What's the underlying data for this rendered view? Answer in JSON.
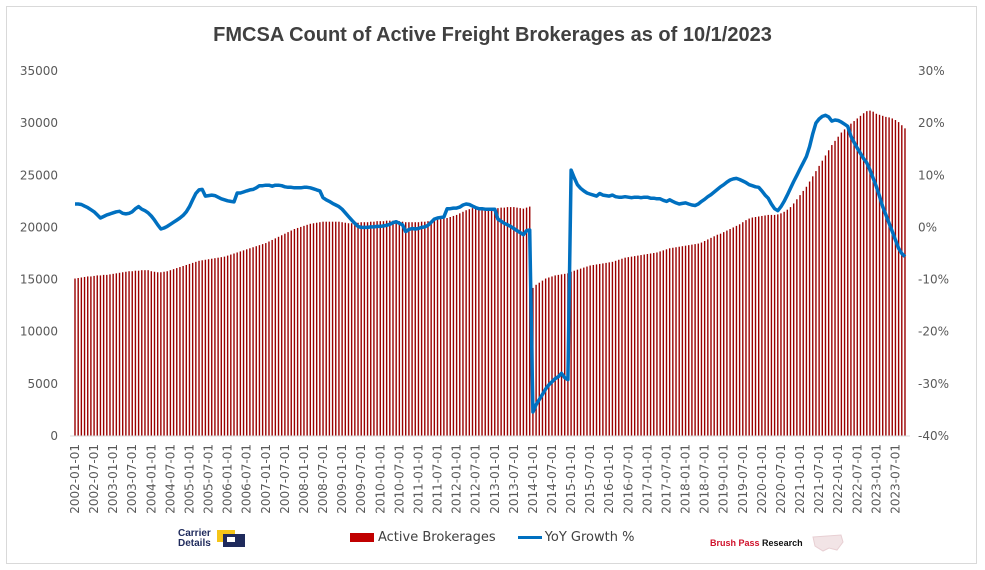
{
  "chart_data": {
    "type": "bar+line",
    "title": "FMCSA Count of Active Freight Brokerages as of 10/1/2023",
    "x_frequency": "monthly",
    "x_tick_labels": [
      "2002-01-01",
      "2002-07-01",
      "2003-01-01",
      "2003-07-01",
      "2004-01-01",
      "2004-07-01",
      "2005-01-01",
      "2005-07-01",
      "2006-01-01",
      "2006-07-01",
      "2007-01-01",
      "2007-07-01",
      "2008-01-01",
      "2008-07-01",
      "2009-01-01",
      "2009-07-01",
      "2010-01-01",
      "2010-07-01",
      "2011-01-01",
      "2011-07-01",
      "2012-01-01",
      "2012-07-01",
      "2013-01-01",
      "2013-07-01",
      "2014-01-01",
      "2014-07-01",
      "2015-01-01",
      "2015-07-01",
      "2016-01-01",
      "2016-07-01",
      "2017-01-01",
      "2017-07-01",
      "2018-01-01",
      "2018-07-01",
      "2019-01-01",
      "2019-07-01",
      "2020-01-01",
      "2020-07-01",
      "2021-01-01",
      "2021-07-01",
      "2022-01-01",
      "2022-07-01",
      "2023-01-01",
      "2023-07-01"
    ],
    "y_left": {
      "ylim": [
        0,
        35000
      ],
      "ticks": [
        "0",
        "5000",
        "10000",
        "15000",
        "20000",
        "25000",
        "30000",
        "35000"
      ]
    },
    "y_right": {
      "ylim": [
        -40,
        30
      ],
      "ticks": [
        "-40%",
        "-30%",
        "-20%",
        "-10%",
        "0%",
        "10%",
        "20%",
        "30%"
      ]
    },
    "grid": false,
    "legend_position": "bottom",
    "series": [
      {
        "name": "Active Brokerages",
        "type": "bar",
        "axis": "left",
        "color": "#9b0000",
        "values": [
          15100,
          15150,
          15200,
          15250,
          15300,
          15300,
          15350,
          15400,
          15400,
          15450,
          15450,
          15500,
          15550,
          15600,
          15650,
          15700,
          15750,
          15800,
          15800,
          15850,
          15850,
          15900,
          15900,
          15900,
          15800,
          15750,
          15700,
          15700,
          15750,
          15800,
          15900,
          16000,
          16100,
          16200,
          16300,
          16400,
          16500,
          16600,
          16700,
          16800,
          16850,
          16900,
          16950,
          17000,
          17050,
          17100,
          17150,
          17200,
          17300,
          17400,
          17500,
          17600,
          17700,
          17800,
          17900,
          18000,
          18100,
          18200,
          18300,
          18400,
          18500,
          18650,
          18800,
          18950,
          19100,
          19250,
          19400,
          19550,
          19700,
          19850,
          19950,
          20050,
          20150,
          20250,
          20350,
          20400,
          20450,
          20500,
          20550,
          20550,
          20550,
          20550,
          20550,
          20550,
          20500,
          20450,
          20400,
          20400,
          20400,
          20450,
          20500,
          20500,
          20500,
          20550,
          20550,
          20600,
          20600,
          20600,
          20650,
          20650,
          20650,
          20650,
          20600,
          20550,
          20500,
          20500,
          20500,
          20500,
          20500,
          20550,
          20550,
          20600,
          20650,
          20700,
          20750,
          20800,
          20850,
          20900,
          21000,
          21100,
          21200,
          21350,
          21500,
          21650,
          21750,
          21850,
          21900,
          21900,
          21850,
          21850,
          21800,
          21800,
          21800,
          21850,
          21900,
          21900,
          21950,
          21950,
          21950,
          21900,
          21850,
          21800,
          21900,
          22000,
          14200,
          14500,
          14700,
          14900,
          15100,
          15200,
          15300,
          15400,
          15450,
          15500,
          15550,
          15600,
          15750,
          15850,
          15950,
          16050,
          16150,
          16250,
          16350,
          16400,
          16450,
          16500,
          16550,
          16600,
          16650,
          16700,
          16800,
          16900,
          17000,
          17100,
          17150,
          17200,
          17250,
          17300,
          17350,
          17400,
          17450,
          17500,
          17550,
          17600,
          17700,
          17800,
          17900,
          18000,
          18050,
          18100,
          18150,
          18200,
          18250,
          18300,
          18350,
          18400,
          18450,
          18550,
          18700,
          18850,
          19000,
          19150,
          19300,
          19400,
          19550,
          19700,
          19850,
          20000,
          20150,
          20300,
          20500,
          20700,
          20850,
          20950,
          21000,
          21050,
          21100,
          21150,
          21200,
          21200,
          21200,
          21250,
          21350,
          21500,
          21700,
          21950,
          22300,
          22700,
          23100,
          23500,
          23900,
          24400,
          24900,
          25400,
          25900,
          26400,
          26900,
          27400,
          27900,
          28300,
          28700,
          29100,
          29400,
          29700,
          29950,
          30200,
          30450,
          30700,
          30950,
          31150,
          31200,
          31100,
          30900,
          30800,
          30700,
          30600,
          30550,
          30450,
          30300,
          30100,
          29800,
          29500
        ]
      },
      {
        "name": "YoY Growth %",
        "type": "line",
        "axis": "right",
        "color": "#0070c0",
        "values": [
          4.5,
          4.5,
          4.4,
          4.1,
          3.8,
          3.4,
          3.0,
          2.4,
          1.8,
          2.1,
          2.4,
          2.6,
          2.8,
          3.0,
          3.1,
          2.7,
          2.6,
          2.7,
          3.0,
          3.6,
          4.0,
          3.5,
          3.2,
          2.8,
          2.2,
          1.4,
          0.5,
          -0.3,
          -0.1,
          0.2,
          0.6,
          1.0,
          1.4,
          1.8,
          2.3,
          3.0,
          4.0,
          5.3,
          6.5,
          7.2,
          7.3,
          6.0,
          6.1,
          6.2,
          6.1,
          5.8,
          5.5,
          5.3,
          5.1,
          5.0,
          4.9,
          6.6,
          6.6,
          6.8,
          7.0,
          7.2,
          7.3,
          7.6,
          8.0,
          8.0,
          8.1,
          8.1,
          7.9,
          8.1,
          8.1,
          8.0,
          7.8,
          7.7,
          7.7,
          7.6,
          7.6,
          7.6,
          7.7,
          7.7,
          7.6,
          7.4,
          7.2,
          7.0,
          5.7,
          5.3,
          5.0,
          4.6,
          4.3,
          4.0,
          3.5,
          2.8,
          2.1,
          1.4,
          0.8,
          0.2,
          0.0,
          0.0,
          0.0,
          0.1,
          0.1,
          0.2,
          0.2,
          0.3,
          0.4,
          0.6,
          0.9,
          1.1,
          0.8,
          0.5,
          -0.8,
          -0.4,
          -0.2,
          -0.3,
          -0.2,
          0.0,
          0.1,
          0.4,
          1.0,
          1.6,
          1.8,
          1.9,
          2.0,
          3.6,
          3.6,
          3.7,
          3.7,
          3.9,
          4.3,
          4.5,
          4.4,
          4.1,
          3.8,
          3.6,
          3.6,
          3.5,
          3.5,
          3.5,
          3.5,
          1.6,
          1.2,
          0.8,
          0.5,
          0.2,
          -0.2,
          -0.6,
          -1.0,
          -1.4,
          -0.6,
          -0.5,
          -35.4,
          -34.0,
          -33.0,
          -32.0,
          -31.0,
          -30.2,
          -29.6,
          -29.0,
          -28.6,
          -28.0,
          -28.8,
          -29.2,
          11.0,
          9.5,
          8.2,
          7.5,
          7.0,
          6.6,
          6.4,
          6.2,
          6.0,
          6.5,
          6.2,
          6.1,
          6.0,
          6.2,
          5.9,
          5.8,
          5.8,
          5.9,
          5.8,
          5.7,
          5.8,
          5.8,
          5.7,
          5.8,
          5.8,
          5.6,
          5.6,
          5.5,
          5.5,
          5.2,
          5.0,
          5.3,
          5.0,
          4.7,
          4.5,
          4.6,
          4.7,
          4.5,
          4.3,
          4.2,
          4.5,
          5.0,
          5.4,
          5.9,
          6.3,
          6.8,
          7.3,
          7.8,
          8.2,
          8.7,
          9.1,
          9.3,
          9.4,
          9.2,
          8.9,
          8.6,
          8.2,
          8.0,
          7.8,
          7.7,
          7.0,
          6.2,
          5.6,
          4.5,
          3.6,
          3.2,
          4.0,
          5.0,
          6.2,
          7.5,
          8.8,
          10.0,
          11.2,
          12.4,
          13.6,
          15.5,
          18.0,
          20.0,
          20.8,
          21.3,
          21.5,
          21.2,
          20.4,
          20.6,
          20.5,
          20.2,
          19.8,
          19.4,
          17.5,
          16.3,
          15.2,
          14.2,
          13.2,
          12.4,
          11.0,
          9.4,
          7.8,
          6.0,
          4.0,
          2.4,
          0.8,
          -0.8,
          -2.4,
          -4.0,
          -5.0,
          -5.6
        ]
      }
    ]
  },
  "legend": {
    "bar_label": "Active Brokerages",
    "line_label": "YoY Growth %"
  },
  "logos": {
    "carrier_details": {
      "line1": "Carrier",
      "line2": "Details"
    },
    "brush_pass": {
      "part1": "Brush Pass",
      "part2": "Research"
    }
  },
  "colors": {
    "bar": "#9b0000",
    "line": "#0070c0",
    "logo_navy": "#1f2a5c",
    "logo_yellow": "#f5c518",
    "logo_red": "#d0102a"
  }
}
